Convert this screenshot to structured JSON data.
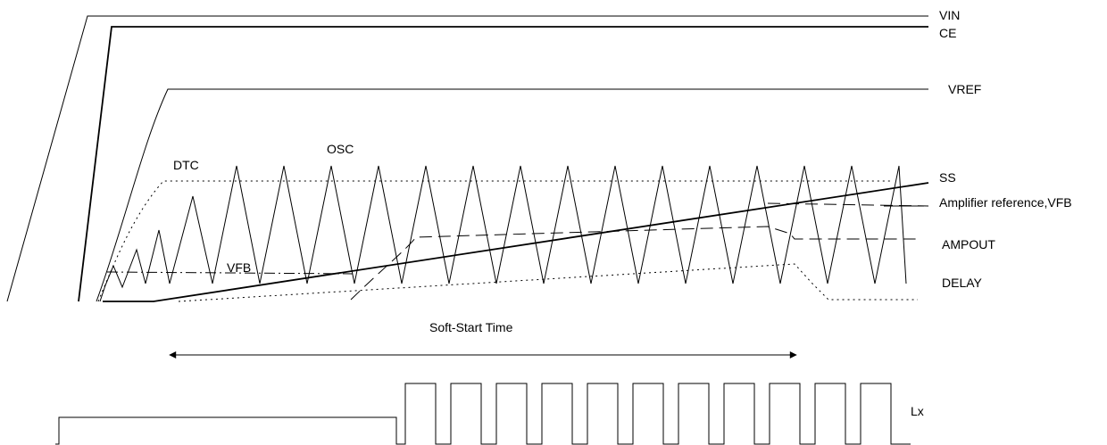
{
  "signals": {
    "vin": "VIN",
    "ce": "CE",
    "vref": "VREF",
    "dtc": "DTC",
    "osc": "OSC",
    "ss": "SS",
    "amp_ref": "Amplifier reference,VFB",
    "vfb": "VFB",
    "ampout": "AMPOUT",
    "delay": "DELAY",
    "lx": "Lx"
  },
  "annotation": {
    "soft_start": "Soft-Start Time"
  }
}
